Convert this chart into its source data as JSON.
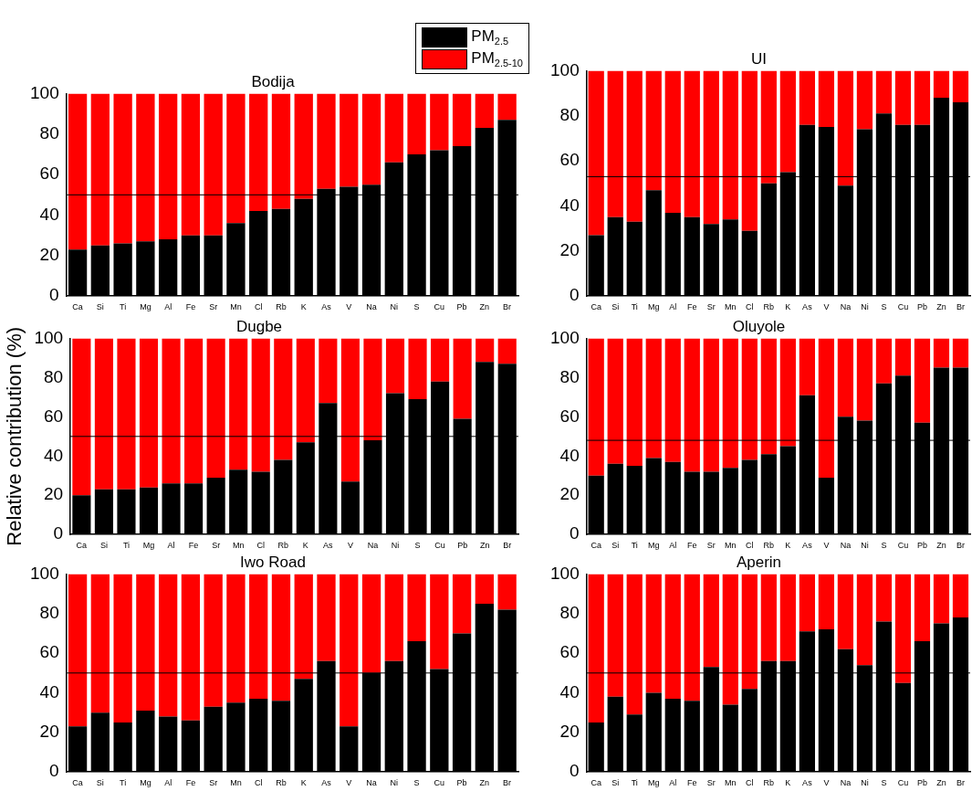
{
  "chart_data": [
    {
      "type": "bar",
      "title": "Bodija",
      "stacked": true,
      "legend": "top right",
      "categories": [
        "Ca",
        "Si",
        "Ti",
        "Mg",
        "Al",
        "Fe",
        "Sr",
        "Mn",
        "Cl",
        "Rb",
        "K",
        "As",
        "V",
        "Na",
        "Ni",
        "S",
        "Cu",
        "Pb",
        "Zn",
        "Br"
      ],
      "ylim": [
        0,
        100
      ],
      "yticks": [
        0,
        20,
        40,
        60,
        80,
        100
      ],
      "series": [
        {
          "name": "PM$_{2.5}$",
          "color": "#000000",
          "values": [
            23,
            25,
            26,
            27,
            28,
            30,
            30,
            36,
            42,
            43,
            48,
            53,
            54,
            55,
            66,
            70,
            72,
            74,
            83,
            87
          ]
        },
        {
          "name": "PM$_{2.5-10}$",
          "color": "#ff0000",
          "values": [
            77,
            75,
            74,
            73,
            72,
            70,
            70,
            64,
            58,
            57,
            52,
            47,
            46,
            45,
            34,
            30,
            28,
            26,
            17,
            13
          ]
        }
      ],
      "ref_lines": [
        {
          "axis": "y",
          "value": 50
        }
      ]
    },
    {
      "type": "bar",
      "title": "UI",
      "stacked": true,
      "categories": [
        "Ca",
        "Si",
        "Ti",
        "Mg",
        "Al",
        "Fe",
        "Sr",
        "Mn",
        "Cl",
        "Rb",
        "K",
        "As",
        "V",
        "Na",
        "Ni",
        "S",
        "Cu",
        "Pb",
        "Zn",
        "Br"
      ],
      "ylim": [
        0,
        100
      ],
      "yticks": [
        0,
        20,
        40,
        60,
        80,
        100
      ],
      "series": [
        {
          "color": "#000000",
          "values": [
            27,
            35,
            33,
            47,
            37,
            35,
            32,
            34,
            29,
            50,
            55,
            76,
            75,
            49,
            74,
            81,
            76,
            76,
            88,
            86
          ]
        },
        {
          "color": "#ff0000",
          "values": [
            73,
            65,
            67,
            53,
            63,
            65,
            68,
            66,
            71,
            50,
            45,
            24,
            25,
            51,
            26,
            19,
            24,
            24,
            12,
            14
          ]
        }
      ],
      "ref_lines": [
        {
          "axis": "y",
          "value": 53
        }
      ]
    },
    {
      "type": "bar",
      "title": "Dugbe",
      "ylabel": "Relative contribution (%)",
      "stacked": true,
      "categories": [
        "Ca",
        "Si",
        "Ti",
        "Mg",
        "Al",
        "Fe",
        "Sr",
        "Mn",
        "Cl",
        "Rb",
        "K",
        "As",
        "V",
        "Na",
        "Ni",
        "S",
        "Cu",
        "Pb",
        "Zn",
        "Br"
      ],
      "ylim": [
        0,
        100
      ],
      "yticks": [
        0,
        20,
        40,
        60,
        80,
        100
      ],
      "series": [
        {
          "color": "#000000",
          "values": [
            20,
            23,
            23,
            24,
            26,
            26,
            29,
            33,
            32,
            38,
            47,
            67,
            27,
            48,
            72,
            69,
            78,
            59,
            88,
            87
          ]
        },
        {
          "color": "#ff0000",
          "values": [
            80,
            77,
            77,
            76,
            74,
            74,
            71,
            67,
            68,
            62,
            53,
            33,
            73,
            52,
            28,
            31,
            22,
            41,
            12,
            13
          ]
        }
      ],
      "ref_lines": [
        {
          "axis": "y",
          "value": 50
        }
      ]
    },
    {
      "type": "bar",
      "title": "Oluyole",
      "stacked": true,
      "categories": [
        "Ca",
        "Si",
        "Ti",
        "Mg",
        "Al",
        "Fe",
        "Sr",
        "Mn",
        "Cl",
        "Rb",
        "K",
        "As",
        "V",
        "Na",
        "Ni",
        "S",
        "Cu",
        "Pb",
        "Zn",
        "Br"
      ],
      "ylim": [
        0,
        100
      ],
      "yticks": [
        0,
        20,
        40,
        60,
        80,
        100
      ],
      "series": [
        {
          "color": "#000000",
          "values": [
            30,
            36,
            35,
            39,
            37,
            32,
            32,
            34,
            38,
            41,
            45,
            71,
            29,
            60,
            58,
            77,
            81,
            57,
            85,
            85
          ]
        },
        {
          "color": "#ff0000",
          "values": [
            70,
            64,
            65,
            61,
            63,
            68,
            68,
            66,
            62,
            59,
            55,
            29,
            71,
            40,
            42,
            23,
            19,
            43,
            15,
            15
          ]
        }
      ],
      "ref_lines": [
        {
          "axis": "y",
          "value": 48
        }
      ]
    },
    {
      "type": "bar",
      "title": "Iwo Road",
      "stacked": true,
      "categories": [
        "Ca",
        "Si",
        "Ti",
        "Mg",
        "Al",
        "Fe",
        "Sr",
        "Mn",
        "Cl",
        "Rb",
        "K",
        "As",
        "V",
        "Na",
        "Ni",
        "S",
        "Cu",
        "Pb",
        "Zn",
        "Br"
      ],
      "ylim": [
        0,
        100
      ],
      "yticks": [
        0,
        20,
        40,
        60,
        80,
        100
      ],
      "series": [
        {
          "color": "#000000",
          "values": [
            23,
            30,
            25,
            31,
            28,
            26,
            33,
            35,
            37,
            36,
            47,
            56,
            23,
            50,
            56,
            66,
            52,
            70,
            85,
            82
          ]
        },
        {
          "color": "#ff0000",
          "values": [
            77,
            70,
            75,
            69,
            72,
            74,
            67,
            65,
            63,
            64,
            53,
            44,
            77,
            50,
            44,
            34,
            48,
            30,
            15,
            18
          ]
        }
      ],
      "ref_lines": [
        {
          "axis": "y",
          "value": 50
        }
      ]
    },
    {
      "type": "bar",
      "title": "Aperin",
      "stacked": true,
      "categories": [
        "Ca",
        "Si",
        "Ti",
        "Mg",
        "Al",
        "Fe",
        "Sr",
        "Mn",
        "Cl",
        "Rb",
        "K",
        "As",
        "V",
        "Na",
        "Ni",
        "S",
        "Cu",
        "Pb",
        "Zn",
        "Br"
      ],
      "ylim": [
        0,
        100
      ],
      "yticks": [
        0,
        20,
        40,
        60,
        80,
        100
      ],
      "series": [
        {
          "color": "#000000",
          "values": [
            25,
            38,
            29,
            40,
            37,
            36,
            53,
            34,
            42,
            56,
            56,
            71,
            72,
            62,
            54,
            76,
            45,
            66,
            75,
            78
          ]
        },
        {
          "color": "#ff0000",
          "values": [
            75,
            62,
            71,
            60,
            63,
            64,
            47,
            66,
            58,
            44,
            44,
            29,
            28,
            38,
            46,
            24,
            55,
            34,
            25,
            22
          ]
        }
      ],
      "ref_lines": [
        {
          "axis": "y",
          "value": 50
        }
      ]
    }
  ]
}
